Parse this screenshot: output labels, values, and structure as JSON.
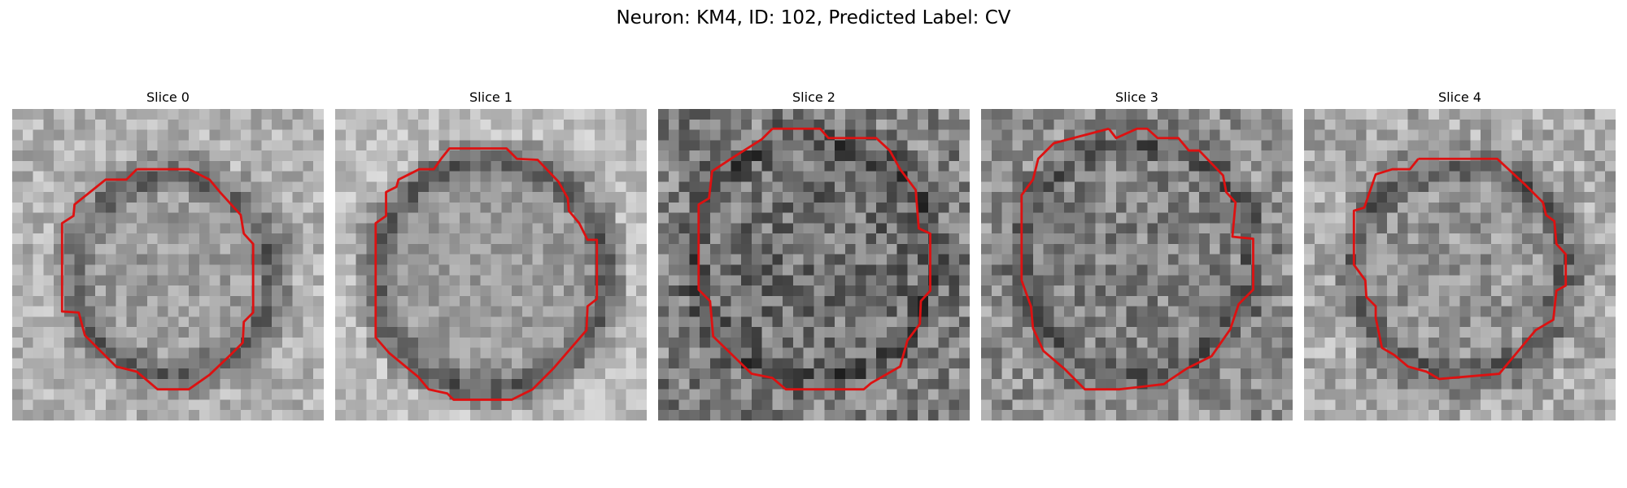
{
  "figure": {
    "title": "Neuron: KM4, ID: 102, Predicted Label: CV"
  },
  "panels": [
    {
      "title": "Slice 0",
      "seed": 11,
      "contour": "#dd1111"
    },
    {
      "title": "Slice 1",
      "seed": 23,
      "contour": "#dd1111"
    },
    {
      "title": "Slice 2",
      "seed": 37,
      "contour": "#dd1111"
    },
    {
      "title": "Slice 3",
      "seed": 53,
      "contour": "#dd1111"
    },
    {
      "title": "Slice 4",
      "seed": 71,
      "contour": "#dd1111"
    }
  ]
}
